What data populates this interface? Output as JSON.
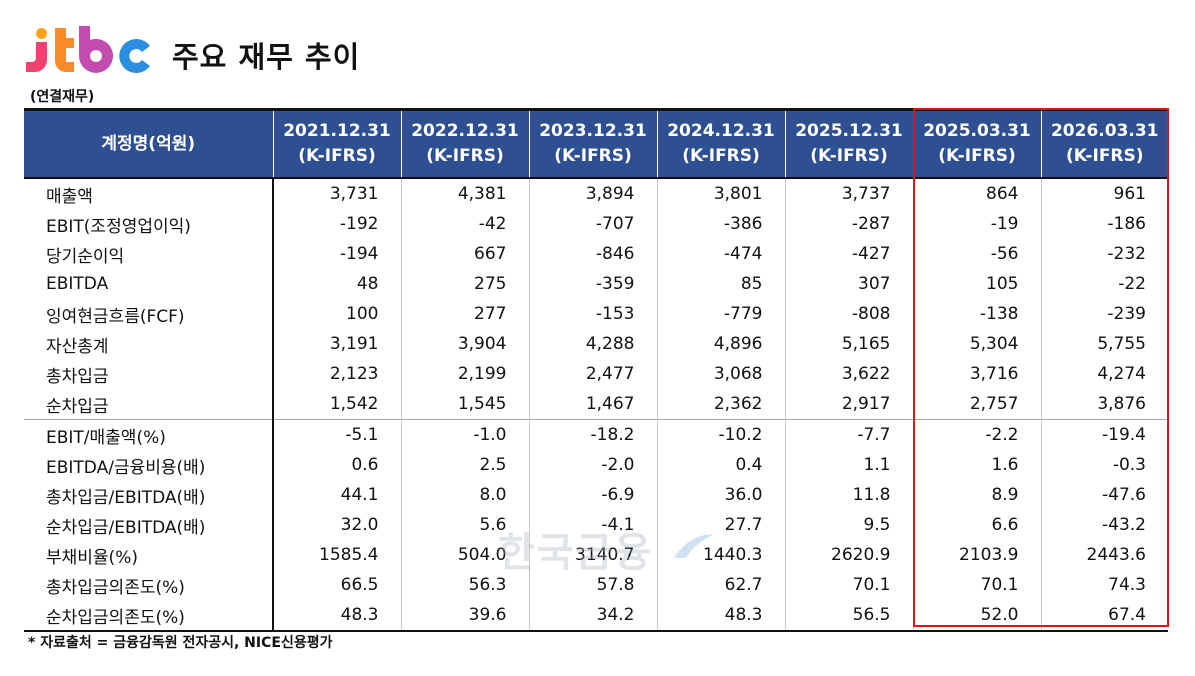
{
  "logo": {
    "text": "jtbc",
    "colors": [
      "#f5406f",
      "#f9a21b",
      "#7b4ad4",
      "#1fb1e6"
    ]
  },
  "title": "주요 재무 추이",
  "unit_note": "(연결재무)",
  "table": {
    "header_label": "계정명(억원)",
    "header_color": "#2f4f93",
    "columns": [
      {
        "date": "2021.12.31",
        "std": "(K-IFRS)"
      },
      {
        "date": "2022.12.31",
        "std": "(K-IFRS)"
      },
      {
        "date": "2023.12.31",
        "std": "(K-IFRS)"
      },
      {
        "date": "2024.12.31",
        "std": "(K-IFRS)"
      },
      {
        "date": "2025.12.31",
        "std": "(K-IFRS)"
      },
      {
        "date": "2025.03.31",
        "std": "(K-IFRS)"
      },
      {
        "date": "2026.03.31",
        "std": "(K-IFRS)"
      }
    ],
    "highlight_color": "#e2141b",
    "rows": [
      {
        "label": "매출액",
        "values": [
          "3,731",
          "4,381",
          "3,894",
          "3,801",
          "3,737",
          "864",
          "961"
        ]
      },
      {
        "label": "EBIT(조정영업이익)",
        "values": [
          "-192",
          "-42",
          "-707",
          "-386",
          "-287",
          "-19",
          "-186"
        ]
      },
      {
        "label": "당기순이익",
        "values": [
          "-194",
          "667",
          "-846",
          "-474",
          "-427",
          "-56",
          "-232"
        ]
      },
      {
        "label": "EBITDA",
        "values": [
          "48",
          "275",
          "-359",
          "85",
          "307",
          "105",
          "-22"
        ]
      },
      {
        "label": "잉여현금흐름(FCF)",
        "values": [
          "100",
          "277",
          "-153",
          "-779",
          "-808",
          "-138",
          "-239"
        ]
      },
      {
        "label": "자산총계",
        "values": [
          "3,191",
          "3,904",
          "4,288",
          "4,896",
          "5,165",
          "5,304",
          "5,755"
        ]
      },
      {
        "label": "총차입금",
        "values": [
          "2,123",
          "2,199",
          "2,477",
          "3,068",
          "3,622",
          "3,716",
          "4,274"
        ]
      },
      {
        "label": "순차입금",
        "values": [
          "1,542",
          "1,545",
          "1,467",
          "2,362",
          "2,917",
          "2,757",
          "3,876"
        ]
      },
      {
        "label": "EBIT/매출액(%)",
        "values": [
          "-5.1",
          "-1.0",
          "-18.2",
          "-10.2",
          "-7.7",
          "-2.2",
          "-19.4"
        ]
      },
      {
        "label": "EBITDA/금융비용(배)",
        "values": [
          "0.6",
          "2.5",
          "-2.0",
          "0.4",
          "1.1",
          "1.6",
          "-0.3"
        ]
      },
      {
        "label": "총차입금/EBITDA(배)",
        "values": [
          "44.1",
          "8.0",
          "-6.9",
          "36.0",
          "11.8",
          "8.9",
          "-47.6"
        ]
      },
      {
        "label": "순차입금/EBITDA(배)",
        "values": [
          "32.0",
          "5.6",
          "-4.1",
          "27.7",
          "9.5",
          "6.6",
          "-43.2"
        ]
      },
      {
        "label": "부채비율(%)",
        "values": [
          "1585.4",
          "504.0",
          "3140.7",
          "1440.3",
          "2620.9",
          "2103.9",
          "2443.6"
        ]
      },
      {
        "label": "총차입금의존도(%)",
        "values": [
          "66.5",
          "56.3",
          "57.8",
          "62.7",
          "70.1",
          "70.1",
          "74.3"
        ]
      },
      {
        "label": "순차입금의존도(%)",
        "values": [
          "48.3",
          "39.6",
          "34.2",
          "48.3",
          "56.5",
          "52.0",
          "67.4"
        ]
      }
    ]
  },
  "watermark": "한국금융",
  "source": "* 자료출처 = 금융감독원 전자공시, NICE신용평가"
}
